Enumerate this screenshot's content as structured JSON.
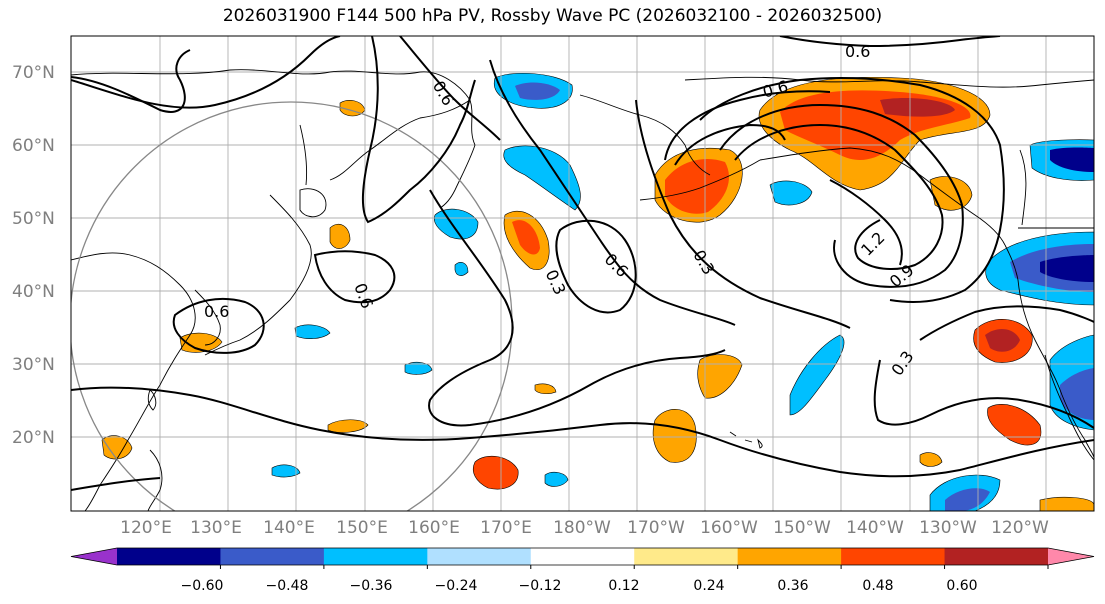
{
  "title": "2026031900 F144 500 hPa PV, Rossby Wave PC (2026032100 - 2026032500)",
  "map": {
    "lat_labels": [
      "70°N",
      "60°N",
      "50°N",
      "40°N",
      "30°N",
      "20°N"
    ],
    "lon_labels": [
      "120°E",
      "130°E",
      "140°E",
      "150°E",
      "160°E",
      "170°E",
      "180°W",
      "170°W",
      "160°W",
      "150°W",
      "140°W",
      "130°W",
      "120°W"
    ],
    "contour_labels": [
      "0.6",
      "0.6",
      "0.6",
      "0.6",
      "0.6",
      "0.3",
      "0.3",
      "0.6",
      "1.2",
      "0.9",
      "0.3"
    ]
  },
  "colorbar": {
    "ticks": [
      "−0.60",
      "−0.48",
      "−0.36",
      "−0.24",
      "−0.12",
      "0.12",
      "0.24",
      "0.36",
      "0.48",
      "0.60"
    ],
    "colors": [
      "#9932cc",
      "#00008b",
      "#3a5bc9",
      "#00bfff",
      "#b0e0ff",
      "#ffffff",
      "#ffea8a",
      "#ffa500",
      "#ff4500",
      "#b22222",
      "#ff88aa"
    ]
  }
}
